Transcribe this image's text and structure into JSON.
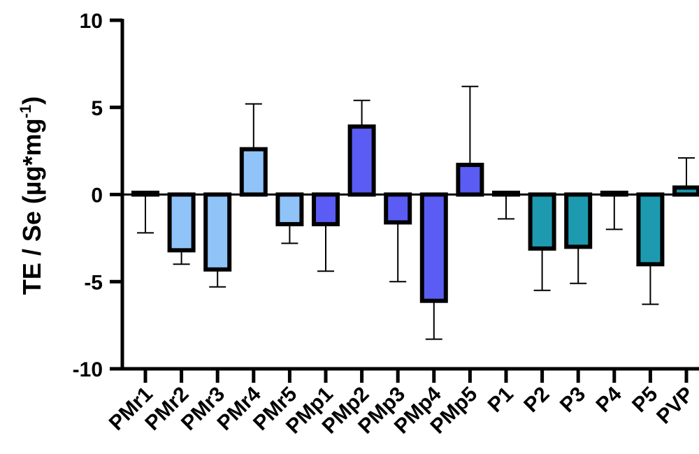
{
  "chart_data": {
    "type": "bar",
    "title": "",
    "xlabel": "",
    "ylabel": {
      "main": "TE / Se (µg*mg",
      "superscript": "-1",
      "close": ")"
    },
    "ylim": [
      -10,
      10
    ],
    "yticks": [
      "10",
      "5",
      "0",
      "-5",
      "-10"
    ],
    "ytick_values": [
      10,
      5,
      0,
      -5,
      -10
    ],
    "grid": false,
    "legend": "none",
    "categories": [
      "PMr1",
      "PMr2",
      "PMr3",
      "PMr4",
      "PMr5",
      "PMp1",
      "PMp2",
      "PMp3",
      "PMp4",
      "PMp5",
      "P1",
      "P2",
      "P3",
      "P4",
      "P5",
      "PVP"
    ],
    "values": [
      0.1,
      -3.2,
      -4.3,
      2.6,
      -1.7,
      -1.7,
      3.9,
      -1.6,
      -6.1,
      1.7,
      0.1,
      -3.1,
      -3.0,
      0.1,
      -4.0,
      0.4
    ],
    "error_bars": [
      {
        "low": -2.2
      },
      {
        "low": -4.0
      },
      {
        "low": -5.3
      },
      {
        "high": 5.2
      },
      {
        "low": -2.8
      },
      {
        "low": -4.4
      },
      {
        "high": 5.4
      },
      {
        "low": -5.0
      },
      {
        "low": -8.3
      },
      {
        "high": 6.2
      },
      {
        "low": -1.4
      },
      {
        "low": -5.5
      },
      {
        "low": -5.1
      },
      {
        "low": -2.0
      },
      {
        "low": -6.3
      },
      {
        "high": 2.1
      }
    ],
    "colors": [
      "#90c4f8",
      "#90c4f8",
      "#90c4f8",
      "#90c4f8",
      "#90c4f8",
      "#5a5cf4",
      "#5a5cf4",
      "#5a5cf4",
      "#5a5cf4",
      "#5a5cf4",
      "#1e9ab0",
      "#1e9ab0",
      "#1e9ab0",
      "#1e9ab0",
      "#1e9ab0",
      "#1e9ab0"
    ]
  }
}
